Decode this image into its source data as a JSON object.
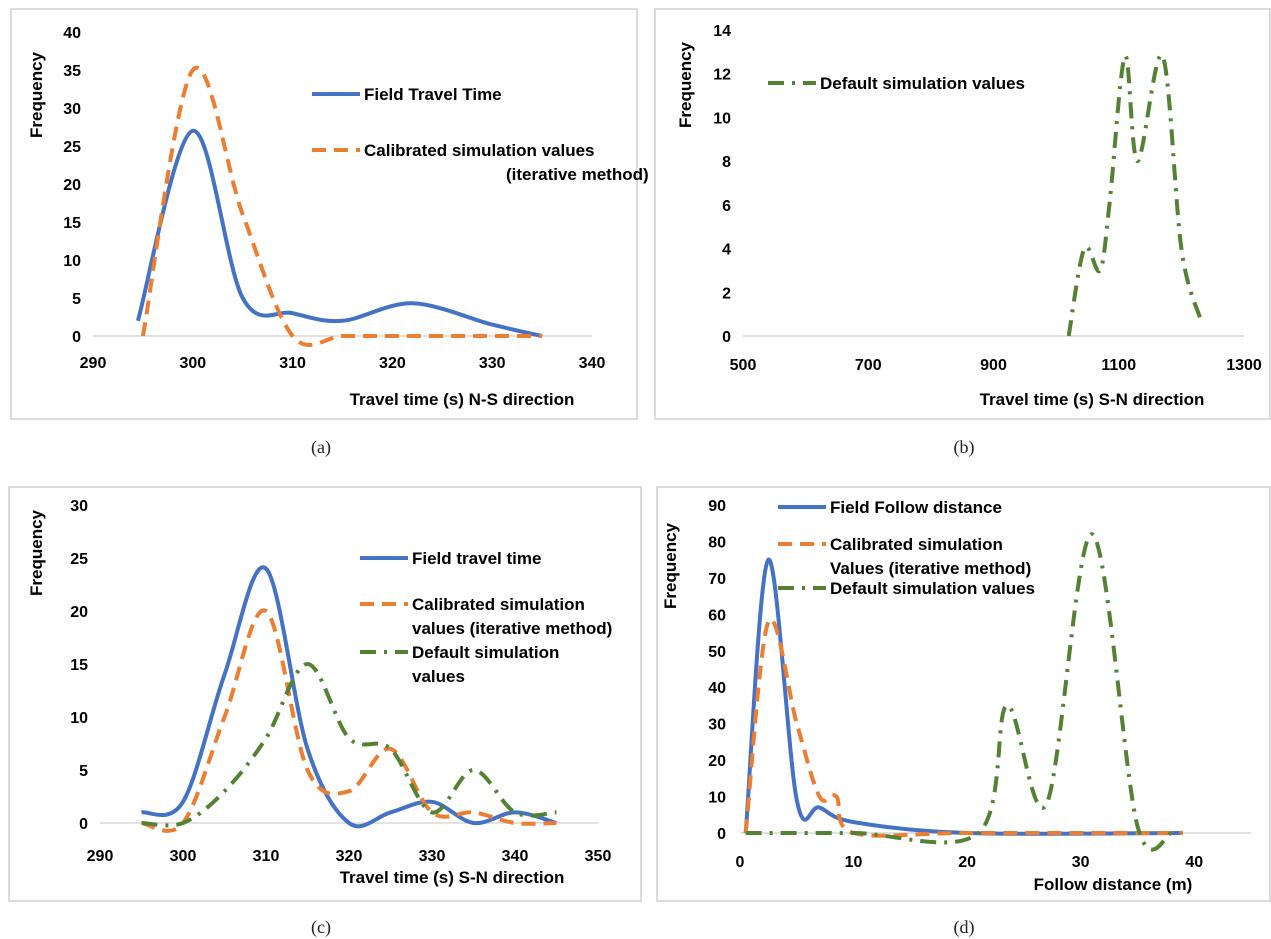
{
  "colors": {
    "field": "#4472c4",
    "calibrated": "#ed7d31",
    "default": "#548235",
    "panel_border": "#dcdcdc"
  },
  "chart_data": [
    {
      "id": "a",
      "type": "line",
      "caption": "(a)",
      "xlabel": "Travel time (s) N-S direction",
      "ylabel": "Frequency",
      "xlim": [
        290,
        340
      ],
      "ylim": [
        0,
        40
      ],
      "xticks": [
        290,
        300,
        310,
        320,
        330,
        340
      ],
      "yticks": [
        0,
        5,
        10,
        15,
        20,
        25,
        30,
        35,
        40
      ],
      "series": [
        {
          "name": "Field Travel Time",
          "color_key": "field",
          "style": "solid",
          "x": [
            294.5,
            300,
            305,
            310,
            315,
            322,
            330,
            335
          ],
          "y": [
            2,
            27,
            5,
            3,
            2,
            4.3,
            1.5,
            0
          ]
        },
        {
          "name": "Calibrated simulation values (iterative method)",
          "color_key": "calibrated",
          "style": "dash",
          "x": [
            295,
            300,
            305,
            310,
            315,
            320,
            330,
            335
          ],
          "y": [
            0,
            35,
            16,
            0,
            0,
            0,
            0,
            0
          ]
        }
      ]
    },
    {
      "id": "b",
      "type": "line",
      "caption": "(b)",
      "xlabel": "Travel time (s) S-N direction",
      "ylabel": "Frequency",
      "xlim": [
        500,
        1300
      ],
      "ylim": [
        0,
        14
      ],
      "xticks": [
        500,
        700,
        900,
        1100,
        1300
      ],
      "yticks": [
        0,
        2,
        4,
        6,
        8,
        10,
        12,
        14
      ],
      "series": [
        {
          "name": "Default simulation values",
          "color_key": "default",
          "style": "dashdot",
          "x": [
            1020,
            1045,
            1070,
            1085,
            1110,
            1130,
            1170,
            1200,
            1230
          ],
          "y": [
            0,
            4,
            3,
            6,
            12.8,
            8,
            12.8,
            4,
            0.8
          ]
        }
      ]
    },
    {
      "id": "c",
      "type": "line",
      "caption": "(c)",
      "xlabel": "Travel time (s) S-N direction",
      "ylabel": "Frequency",
      "xlim": [
        290,
        350
      ],
      "ylim": [
        0,
        30
      ],
      "xticks": [
        290,
        300,
        310,
        320,
        330,
        340,
        350
      ],
      "yticks": [
        0,
        5,
        10,
        15,
        20,
        25,
        30
      ],
      "series": [
        {
          "name": "Field travel time",
          "color_key": "field",
          "style": "solid",
          "x": [
            295,
            300,
            305,
            310,
            315,
            320,
            325,
            330,
            335,
            340,
            345
          ],
          "y": [
            1,
            2,
            14,
            24,
            7,
            0,
            1,
            2,
            0,
            1,
            0
          ]
        },
        {
          "name": "Calibrated simulation values (iterative method)",
          "color_key": "calibrated",
          "style": "dash",
          "x": [
            295,
            300,
            305,
            310,
            315,
            320,
            325,
            330,
            335,
            340,
            345
          ],
          "y": [
            0,
            0,
            10,
            20,
            5,
            3,
            7,
            1,
            1,
            0,
            0
          ]
        },
        {
          "name": "Default simulation values",
          "color_key": "default",
          "style": "dashdot",
          "x": [
            295,
            300,
            305,
            310,
            315,
            320,
            325,
            330,
            335,
            340,
            345
          ],
          "y": [
            0,
            0,
            3,
            8,
            15,
            8,
            7,
            1,
            5,
            1,
            1
          ]
        }
      ]
    },
    {
      "id": "d",
      "type": "line",
      "caption": "(d)",
      "xlabel": "Follow distance (m)",
      "ylabel": "Frequency",
      "xlim": [
        0,
        45
      ],
      "ylim": [
        0,
        90
      ],
      "xticks": [
        0,
        10,
        20,
        30,
        40
      ],
      "yticks": [
        0,
        10,
        20,
        30,
        40,
        50,
        60,
        70,
        80,
        90
      ],
      "series": [
        {
          "name": "Field Follow distance",
          "color_key": "field",
          "style": "solid",
          "x": [
            0.5,
            2.5,
            5,
            7,
            10,
            20,
            39
          ],
          "y": [
            0,
            75,
            9,
            7,
            3,
            0,
            0
          ]
        },
        {
          "name": "Calibrated simulation Values (iterative method)",
          "color_key": "calibrated",
          "style": "dash",
          "x": [
            0.5,
            2.5,
            5,
            7,
            8.5,
            10,
            20,
            39
          ],
          "y": [
            0,
            58,
            30,
            10,
            10,
            0,
            0,
            0
          ]
        },
        {
          "name": "Default simulation values",
          "color_key": "default",
          "style": "dashdot",
          "x": [
            0.5,
            10,
            21,
            23.5,
            27,
            31,
            35,
            38
          ],
          "y": [
            0,
            0,
            0,
            35,
            8,
            82,
            2,
            0
          ]
        }
      ]
    }
  ],
  "legends": {
    "a": [
      {
        "lines": [
          "Field Travel Time"
        ],
        "color_key": "field",
        "style": "solid"
      },
      {
        "lines": [
          "Calibrated simulation values",
          "(iterative method)"
        ],
        "color_key": "calibrated",
        "style": "dash"
      }
    ],
    "b": [
      {
        "lines": [
          "Default simulation values"
        ],
        "color_key": "default",
        "style": "dashdot"
      }
    ],
    "c": [
      {
        "lines": [
          "Field travel time"
        ],
        "color_key": "field",
        "style": "solid"
      },
      {
        "lines": [
          "Calibrated simulation",
          "values (iterative method)"
        ],
        "color_key": "calibrated",
        "style": "dash"
      },
      {
        "lines": [
          "Default simulation",
          "values"
        ],
        "color_key": "default",
        "style": "dashdot"
      }
    ],
    "d": [
      {
        "lines": [
          "Field Follow distance"
        ],
        "color_key": "field",
        "style": "solid"
      },
      {
        "lines": [
          "Calibrated simulation",
          "Values (iterative method)"
        ],
        "color_key": "calibrated",
        "style": "dash"
      },
      {
        "lines": [
          "Default simulation values"
        ],
        "color_key": "default",
        "style": "dashdot"
      }
    ]
  }
}
